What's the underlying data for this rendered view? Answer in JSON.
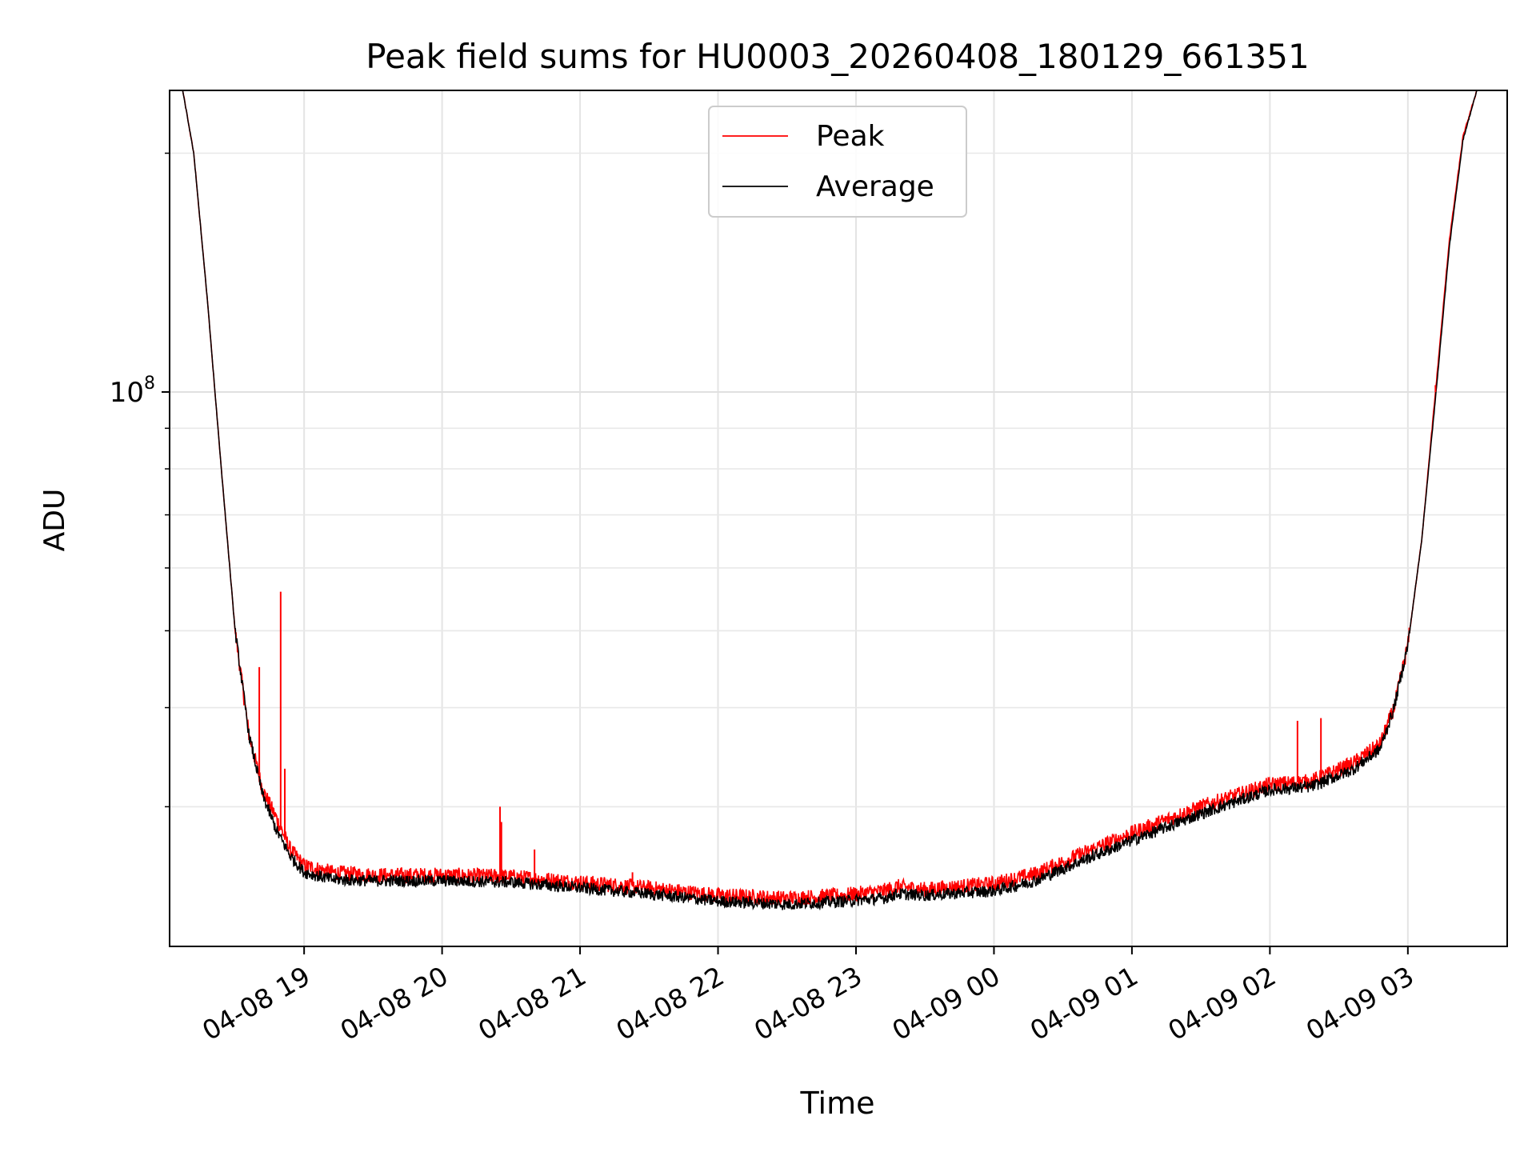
{
  "chart_data": {
    "type": "line",
    "title": "Peak field sums for HU0003_20260408_180129_661351",
    "xlabel": "Time",
    "ylabel": "ADU",
    "y_scale": "log",
    "ylim": [
      20000000,
      240000000
    ],
    "x_range_hours": [
      18.025,
      27.72
    ],
    "x_ticks": [
      {
        "hour": 19,
        "label": "04-08 19"
      },
      {
        "hour": 20,
        "label": "04-08 20"
      },
      {
        "hour": 21,
        "label": "04-08 21"
      },
      {
        "hour": 22,
        "label": "04-08 22"
      },
      {
        "hour": 23,
        "label": "04-08 23"
      },
      {
        "hour": 24,
        "label": "04-09 00"
      },
      {
        "hour": 25,
        "label": "04-09 01"
      },
      {
        "hour": 26,
        "label": "04-09 02"
      },
      {
        "hour": 27,
        "label": "04-09 03"
      }
    ],
    "y_major_ticks": [
      {
        "value": 100000000,
        "base": "10",
        "exp": "8"
      }
    ],
    "y_minor_ticks": [
      30000000,
      40000000,
      50000000,
      60000000,
      70000000,
      80000000,
      90000000,
      200000000
    ],
    "grid": true,
    "legend_position": "upper-center",
    "series": [
      {
        "name": "Peak",
        "color": "#ff0000",
        "points": [
          [
            18.12,
            240000000
          ],
          [
            18.2,
            200000000
          ],
          [
            18.3,
            130000000
          ],
          [
            18.4,
            80000000
          ],
          [
            18.5,
            50000000
          ],
          [
            18.6,
            37000000
          ],
          [
            18.7,
            31500000
          ],
          [
            18.8,
            29000000
          ],
          [
            18.9,
            26500000
          ],
          [
            19.0,
            25300000
          ],
          [
            19.2,
            24800000
          ],
          [
            19.5,
            24600000
          ],
          [
            20.0,
            24600000
          ],
          [
            20.5,
            24500000
          ],
          [
            21.0,
            24100000
          ],
          [
            21.5,
            23700000
          ],
          [
            22.0,
            23200000
          ],
          [
            22.5,
            23000000
          ],
          [
            22.9,
            23200000
          ],
          [
            23.2,
            23500000
          ],
          [
            23.3,
            23800000
          ],
          [
            23.5,
            23600000
          ],
          [
            24.0,
            24000000
          ],
          [
            24.3,
            24700000
          ],
          [
            24.6,
            26000000
          ],
          [
            25.0,
            27800000
          ],
          [
            25.5,
            30000000
          ],
          [
            26.0,
            32000000
          ],
          [
            26.3,
            32300000
          ],
          [
            26.6,
            34000000
          ],
          [
            26.8,
            36000000
          ],
          [
            26.9,
            40000000
          ],
          [
            27.0,
            48000000
          ],
          [
            27.1,
            65000000
          ],
          [
            27.2,
            100000000
          ],
          [
            27.3,
            155000000
          ],
          [
            27.4,
            210000000
          ],
          [
            27.5,
            240000000
          ]
        ],
        "spikes": [
          {
            "hour": 18.675,
            "value": 45000000
          },
          {
            "hour": 18.83,
            "value": 56000000
          },
          {
            "hour": 18.86,
            "value": 33500000
          },
          {
            "hour": 20.42,
            "value": 30000000
          },
          {
            "hour": 20.43,
            "value": 28700000
          },
          {
            "hour": 20.67,
            "value": 26500000
          },
          {
            "hour": 21.38,
            "value": 24800000
          },
          {
            "hour": 26.2,
            "value": 38500000
          },
          {
            "hour": 26.37,
            "value": 38800000
          },
          {
            "hour": 27.2,
            "value": 102000000
          }
        ]
      },
      {
        "name": "Average",
        "color": "#000000",
        "points": [
          [
            18.12,
            240000000
          ],
          [
            18.2,
            200000000
          ],
          [
            18.3,
            130000000
          ],
          [
            18.4,
            80000000
          ],
          [
            18.5,
            50000000
          ],
          [
            18.6,
            37000000
          ],
          [
            18.7,
            31000000
          ],
          [
            18.8,
            28000000
          ],
          [
            18.9,
            26000000
          ],
          [
            19.0,
            24800000
          ],
          [
            19.2,
            24300000
          ],
          [
            19.5,
            24200000
          ],
          [
            20.0,
            24200000
          ],
          [
            20.5,
            24100000
          ],
          [
            21.0,
            23700000
          ],
          [
            21.5,
            23300000
          ],
          [
            22.0,
            22800000
          ],
          [
            22.5,
            22600000
          ],
          [
            22.9,
            22800000
          ],
          [
            23.2,
            23000000
          ],
          [
            23.3,
            23300000
          ],
          [
            23.5,
            23200000
          ],
          [
            24.0,
            23500000
          ],
          [
            24.3,
            24200000
          ],
          [
            24.6,
            25500000
          ],
          [
            25.0,
            27200000
          ],
          [
            25.5,
            29400000
          ],
          [
            26.0,
            31500000
          ],
          [
            26.3,
            31800000
          ],
          [
            26.6,
            33400000
          ],
          [
            26.8,
            35500000
          ],
          [
            26.9,
            40000000
          ],
          [
            27.0,
            48000000
          ],
          [
            27.1,
            65000000
          ],
          [
            27.2,
            98000000
          ],
          [
            27.3,
            152000000
          ],
          [
            27.4,
            208000000
          ],
          [
            27.5,
            240000000
          ]
        ]
      }
    ]
  }
}
